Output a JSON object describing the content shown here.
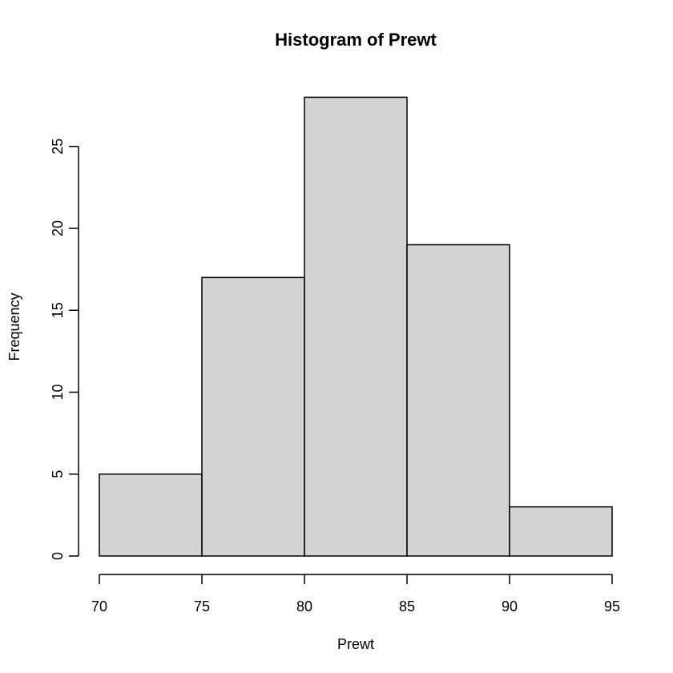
{
  "chart_data": {
    "type": "bar",
    "title": "Histogram of Prewt",
    "xlabel": "Prewt",
    "ylabel": "Frequency",
    "bins": [
      {
        "start": 70,
        "end": 75,
        "count": 5
      },
      {
        "start": 75,
        "end": 80,
        "count": 17
      },
      {
        "start": 80,
        "end": 85,
        "count": 28
      },
      {
        "start": 85,
        "end": 90,
        "count": 19
      },
      {
        "start": 90,
        "end": 95,
        "count": 3
      }
    ],
    "xlim": [
      70,
      95
    ],
    "ylim": [
      0,
      28
    ],
    "xticks": [
      70,
      75,
      80,
      85,
      90,
      95
    ],
    "yticks": [
      0,
      5,
      10,
      15,
      20,
      25
    ],
    "xtick_labels": [
      "70",
      "75",
      "80",
      "85",
      "90",
      "95"
    ],
    "ytick_labels": [
      "0",
      "5",
      "10",
      "15",
      "20",
      "25"
    ],
    "bar_fill": "#d3d3d3",
    "bar_stroke": "#000000",
    "grid": false
  }
}
